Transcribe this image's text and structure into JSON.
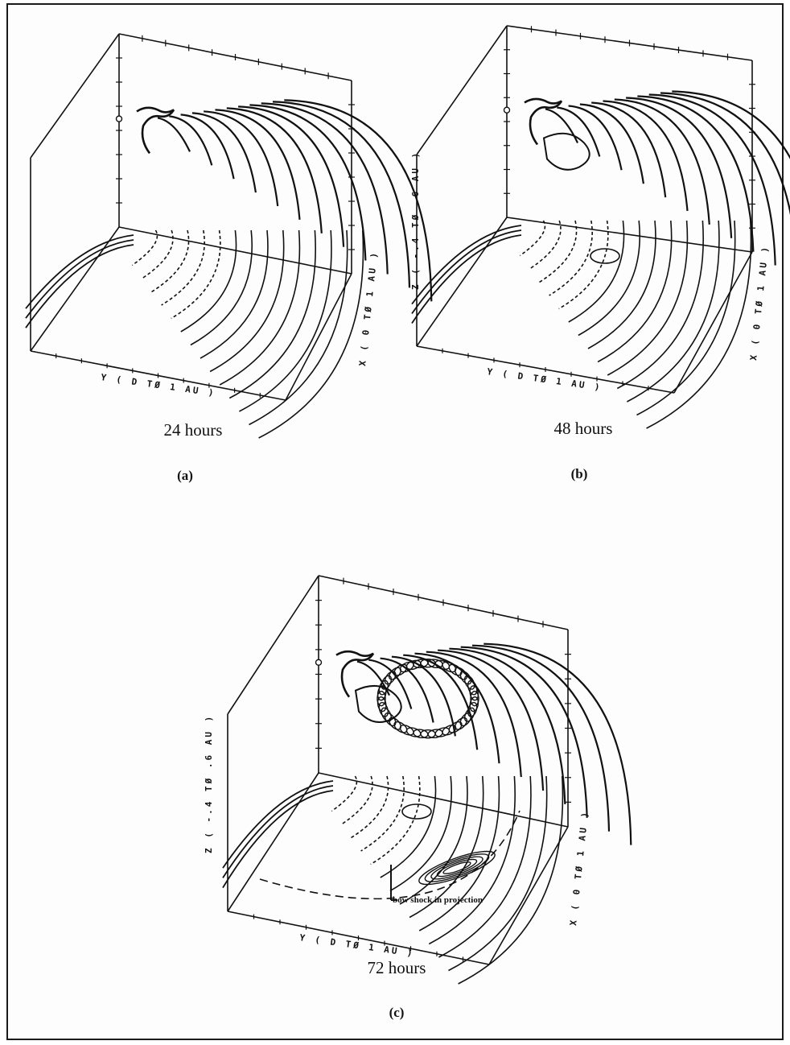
{
  "panels": [
    {
      "id": "a",
      "caption": "24 hours",
      "label": "(a)",
      "y_axis": "Y ( D TØ 1 AU )",
      "x_axis": "X ( 0 TØ 1 AU )",
      "z_axis": ""
    },
    {
      "id": "b",
      "caption": "48 hours",
      "label": "(b)",
      "y_axis": "Y ( D TØ 1 AU )",
      "x_axis": "X ( 0 TØ 1 AU )",
      "z_axis": "Z ( -.4 TØ .6 AU )"
    },
    {
      "id": "c",
      "caption": "72 hours",
      "label": "(c)",
      "y_axis": "Y ( D TØ 1 AU )",
      "x_axis": "X ( 0 TØ 1 AU )",
      "z_axis": "Z ( -.4 TØ .6 AU )",
      "annotation": "bow shock in projection"
    }
  ]
}
